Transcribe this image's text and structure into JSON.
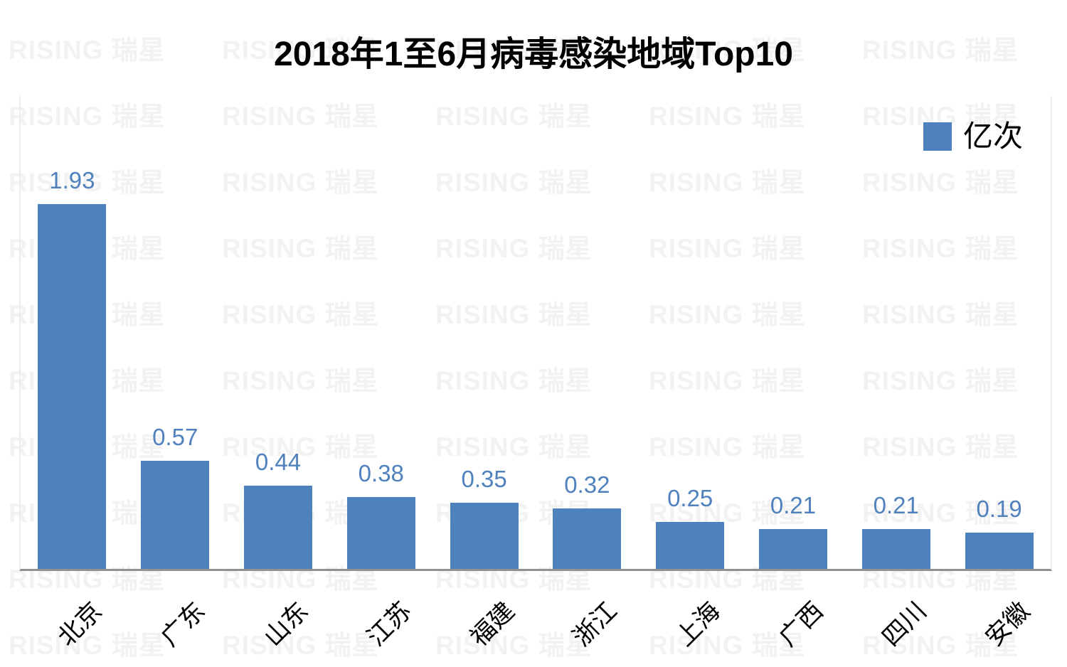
{
  "page": {
    "background": "#ffffff"
  },
  "watermark": {
    "text": "RISING 瑞星",
    "color": "#f2f2f2"
  },
  "chart": {
    "title": "2018年1至6月病毒感染地域Top10",
    "legend_label": "亿次",
    "bar_color": "#4F81BD",
    "value_label_color": "#4F81BD",
    "axis_line_color": "#919191"
  },
  "chart_data": {
    "type": "bar",
    "title": "2018年1至6月病毒感染地域Top10",
    "categories": [
      "北京",
      "广东",
      "山东",
      "江苏",
      "福建",
      "浙江",
      "上海",
      "广西",
      "四川",
      "安徽"
    ],
    "values": [
      1.93,
      0.57,
      0.44,
      0.38,
      0.35,
      0.32,
      0.25,
      0.21,
      0.21,
      0.19
    ],
    "series_name": "亿次",
    "xlabel": "",
    "ylabel": "",
    "ylim": [
      0,
      2.5
    ],
    "grid": false,
    "y_axis_visible": false,
    "data_labels": true,
    "legend_position": "top-right",
    "x_label_rotation_deg": 45
  }
}
